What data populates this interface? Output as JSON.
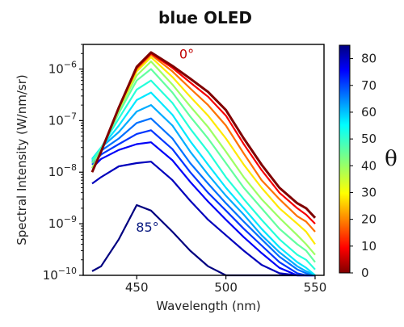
{
  "chart_data": {
    "type": "line",
    "title": "blue OLED",
    "xlabel": "Wavelength (nm)",
    "ylabel": "Spectral Intensity (W/nm/sr)",
    "xlim": [
      420,
      555
    ],
    "ylim": [
      1e-10,
      3e-06
    ],
    "yscale": "log",
    "x_ticks": [
      450,
      500,
      550
    ],
    "x_tick_labels": [
      "450",
      "500",
      "550"
    ],
    "y_ticks": [
      1e-06,
      1e-07,
      1e-08,
      1e-09,
      1e-10
    ],
    "y_tick_labels": [
      {
        "base": "10",
        "exp": "−6"
      },
      {
        "base": "10",
        "exp": "−7"
      },
      {
        "base": "10",
        "exp": "−8"
      },
      {
        "base": "10",
        "exp": "−9"
      },
      {
        "base": "10",
        "exp": "−10"
      }
    ],
    "x": [
      425,
      430,
      440,
      450,
      458,
      470,
      480,
      490,
      500,
      510,
      520,
      530,
      540,
      545,
      550
    ],
    "series": [
      {
        "angle": 0,
        "values": [
          1e-08,
          2.5e-08,
          1.8e-07,
          1.1e-06,
          2.1e-06,
          1.15e-06,
          6.5e-07,
          3.6e-07,
          1.6e-07,
          4.5e-08,
          1.4e-08,
          5e-09,
          2.5e-09,
          2e-09,
          1.3e-09
        ]
      },
      {
        "angle": 10,
        "values": [
          1e-08,
          2.5e-08,
          1.8e-07,
          1.05e-06,
          2e-06,
          1.05e-06,
          5.5e-07,
          2.9e-07,
          1.25e-07,
          3.5e-08,
          1.1e-08,
          4e-09,
          2e-09,
          1.5e-09,
          1e-09
        ]
      },
      {
        "angle": 20,
        "values": [
          1e-08,
          2.5e-08,
          1.8e-07,
          1e-06,
          1.9e-06,
          9e-07,
          4.2e-07,
          2e-07,
          8e-08,
          2.3e-08,
          7e-09,
          3e-09,
          1.4e-09,
          1.1e-09,
          7e-10
        ]
      },
      {
        "angle": 30,
        "values": [
          1e-08,
          2.5e-08,
          1.7e-07,
          9e-07,
          1.7e-06,
          7e-07,
          2.9e-07,
          1.25e-07,
          4.5e-08,
          1.4e-08,
          5e-09,
          2e-09,
          1e-09,
          7e-10,
          4e-10
        ]
      },
      {
        "angle": 40,
        "values": [
          1.2e-08,
          2.5e-08,
          1.6e-07,
          7.5e-07,
          1.4e-06,
          5e-07,
          1.9e-07,
          7.5e-08,
          2.5e-08,
          8e-09,
          3e-09,
          1.3e-09,
          6e-10,
          4e-10,
          2.5e-10
        ]
      },
      {
        "angle": 45,
        "values": [
          1.5e-08,
          2.8e-08,
          1.4e-07,
          6e-07,
          1e-06,
          3.5e-07,
          1.2e-07,
          4.5e-08,
          1.5e-08,
          5e-09,
          2e-09,
          8e-10,
          4e-10,
          3e-10,
          1.8e-10
        ]
      },
      {
        "angle": 50,
        "values": [
          1.7e-08,
          3e-08,
          1.1e-07,
          4e-07,
          6e-07,
          2.2e-07,
          7e-08,
          2.5e-08,
          8e-09,
          3e-09,
          1.2e-09,
          5e-10,
          2.5e-10,
          2e-10,
          1.3e-10
        ]
      },
      {
        "angle": 55,
        "values": [
          1.8e-08,
          3e-08,
          8e-08,
          2.5e-07,
          3.5e-07,
          1.3e-07,
          4e-08,
          1.4e-08,
          5e-09,
          2e-09,
          8e-10,
          3.5e-10,
          1.8e-10,
          1.4e-10,
          1e-10
        ]
      },
      {
        "angle": 60,
        "values": [
          1.8e-08,
          3e-08,
          6e-08,
          1.5e-07,
          2e-07,
          8e-08,
          2.5e-08,
          9e-09,
          3.5e-09,
          1.5e-09,
          6e-10,
          2.8e-10,
          1.5e-10,
          1.2e-10,
          1e-10
        ]
      },
      {
        "angle": 65,
        "values": [
          1.6e-08,
          2.6e-08,
          4.5e-08,
          9e-08,
          1.1e-07,
          4.5e-08,
          1.5e-08,
          6e-09,
          2.5e-09,
          1.1e-09,
          5e-10,
          2.3e-10,
          1.3e-10,
          1.1e-10,
          1e-10
        ]
      },
      {
        "angle": 70,
        "values": [
          1.4e-08,
          2.2e-08,
          3.5e-08,
          5.5e-08,
          6.5e-08,
          2.8e-08,
          1e-08,
          4e-09,
          1.8e-09,
          8e-10,
          3.8e-10,
          1.8e-10,
          1.1e-10,
          1e-10,
          1e-10
        ]
      },
      {
        "angle": 75,
        "values": [
          1.2e-08,
          1.8e-08,
          2.7e-08,
          3.5e-08,
          3.8e-08,
          1.7e-08,
          6.5e-09,
          2.7e-09,
          1.2e-09,
          5.5e-10,
          2.7e-10,
          1.4e-10,
          1e-10,
          1e-10,
          1e-10
        ]
      },
      {
        "angle": 80,
        "values": [
          6e-09,
          8e-09,
          1.3e-08,
          1.5e-08,
          1.6e-08,
          7e-09,
          2.8e-09,
          1.2e-09,
          6e-10,
          3e-10,
          1.6e-10,
          1.1e-10,
          1e-10,
          1e-10,
          1e-10
        ]
      },
      {
        "angle": 85,
        "values": [
          1.2e-10,
          1.5e-10,
          5e-10,
          2.3e-09,
          1.8e-09,
          7e-10,
          3e-10,
          1.5e-10,
          1e-10,
          1e-10,
          1e-10,
          1e-10,
          1e-10,
          1e-10,
          1e-10
        ]
      }
    ],
    "annotations": [
      {
        "text": "0°",
        "x": 478,
        "y": 1.6e-06,
        "color": "#c00000"
      },
      {
        "text": "85°",
        "x": 456,
        "y": 7e-10,
        "color": "#0a1a80"
      }
    ],
    "colorbar": {
      "label": "θ",
      "range": [
        0,
        85
      ],
      "ticks": [
        0,
        10,
        20,
        30,
        40,
        50,
        60,
        70,
        80
      ],
      "colormap": "jet_r"
    },
    "grid": false,
    "legend": "none"
  }
}
